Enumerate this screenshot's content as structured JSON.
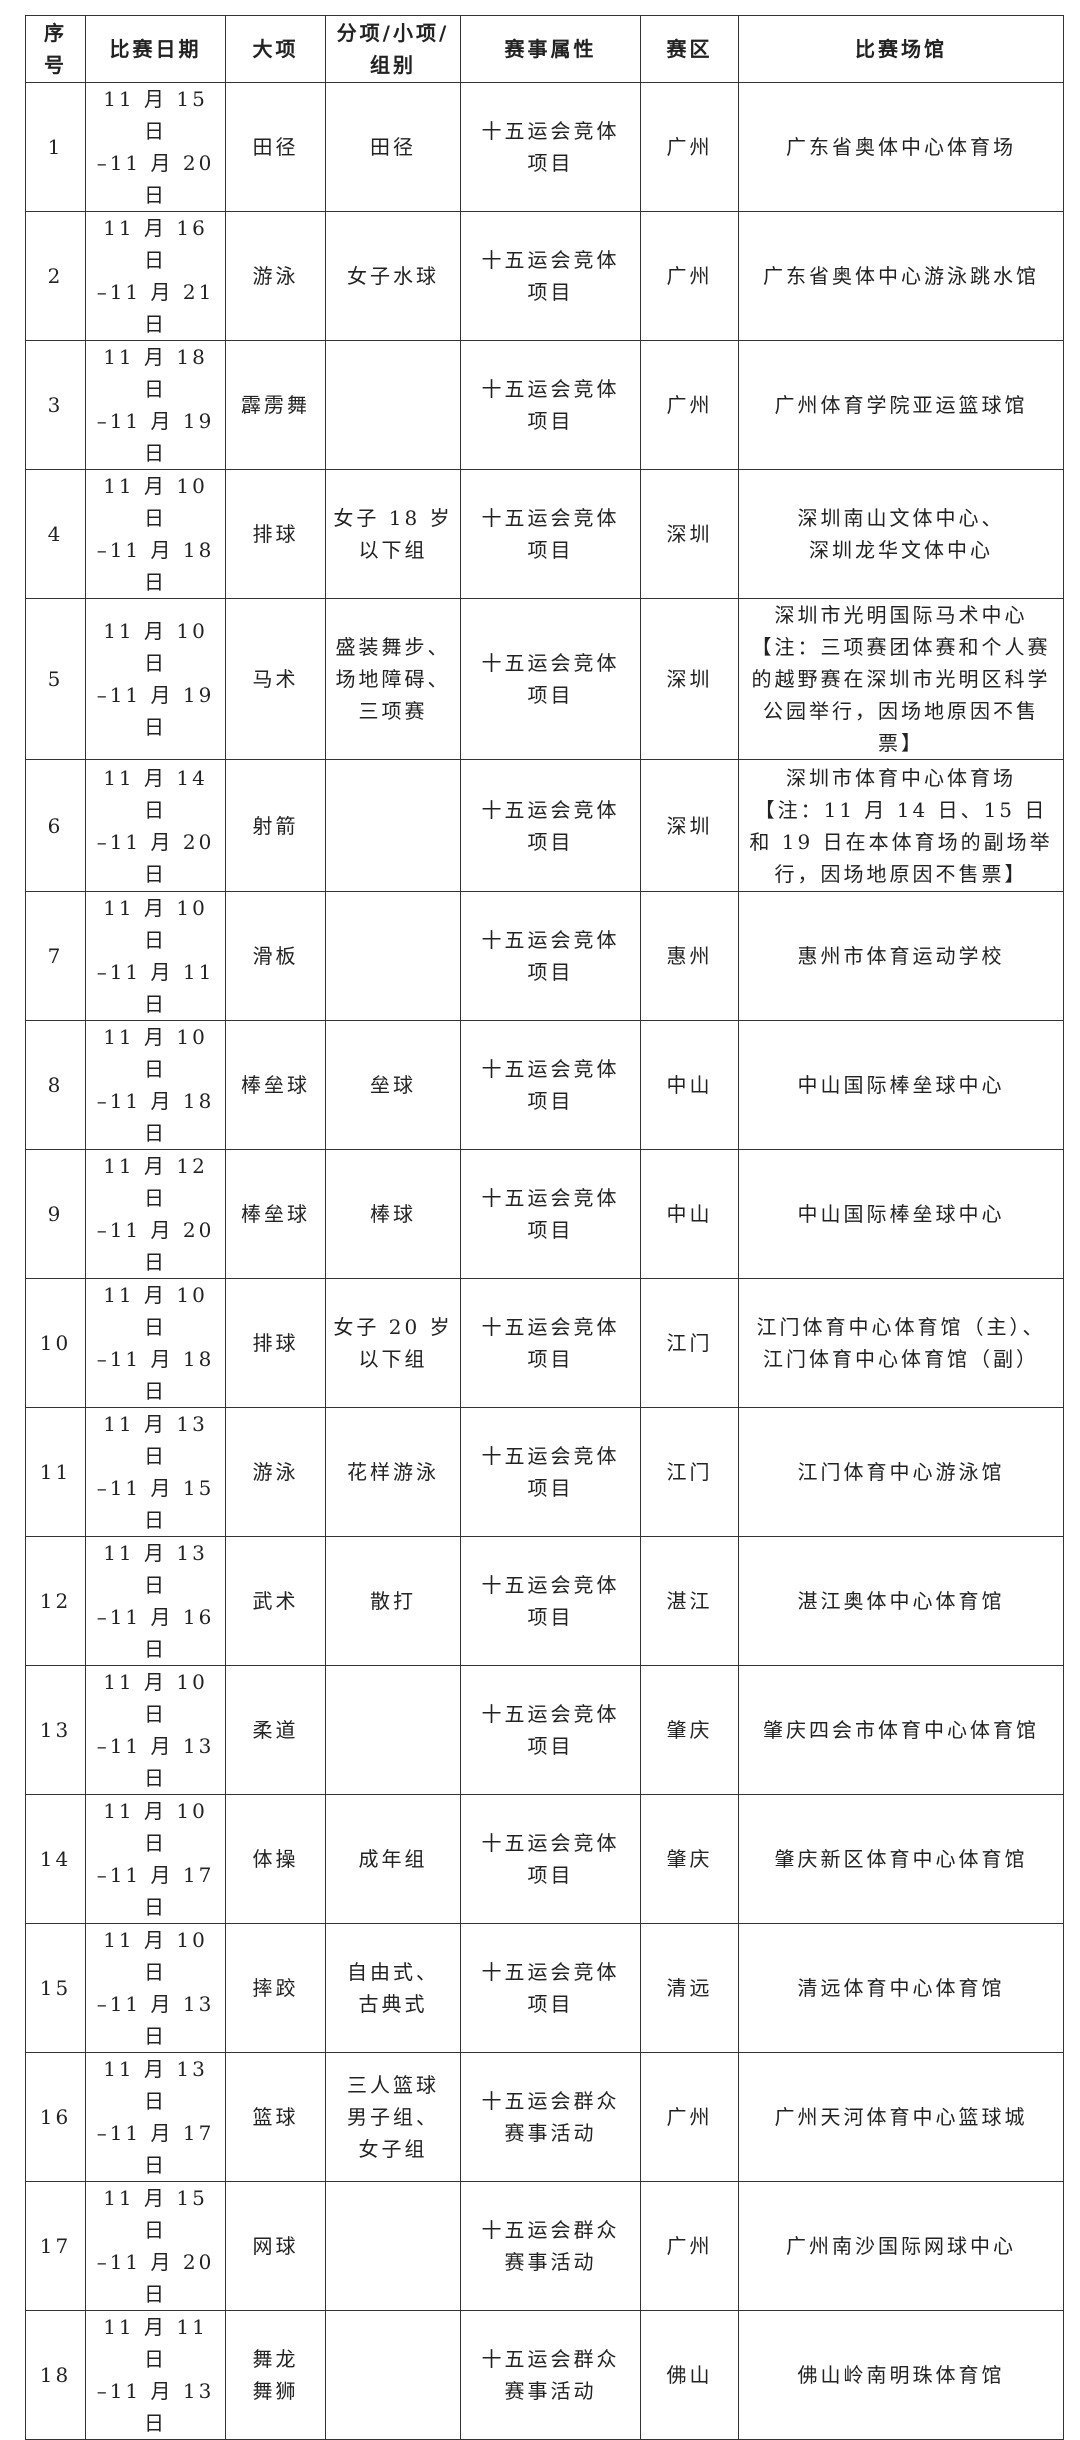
{
  "headers": [
    "序\n号",
    "比赛日期",
    "大项",
    "分项/小项/\n组别",
    "赛事属性",
    "赛区",
    "比赛场馆"
  ],
  "rows": [
    [
      "1",
      "11 月 15 日\n–11 月 20 日",
      "田径",
      "田径",
      "十五运会竞体\n项目",
      "广州",
      "广东省奥体中心体育场"
    ],
    [
      "2",
      "11 月 16 日\n–11 月 21 日",
      "游泳",
      "女子水球",
      "十五运会竞体\n项目",
      "广州",
      "广东省奥体中心游泳跳水馆"
    ],
    [
      "3",
      "11 月 18 日\n–11 月 19 日",
      "霹雳舞",
      "",
      "十五运会竞体\n项目",
      "广州",
      "广州体育学院亚运篮球馆"
    ],
    [
      "4",
      "11 月 10 日\n–11 月 18 日",
      "排球",
      "女子 18 岁\n以下组",
      "十五运会竞体\n项目",
      "深圳",
      "深圳南山文体中心、\n深圳龙华文体中心"
    ],
    [
      "5",
      "11 月 10 日\n–11 月 19 日",
      "马术",
      "盛装舞步、\n场地障碍、\n三项赛",
      "十五运会竞体\n项目",
      "深圳",
      "深圳市光明国际马术中心\n【注：三项赛团体赛和个人赛的越野赛在深圳市光明区科学公园举行，因场地原因不售票】"
    ],
    [
      "6",
      "11 月 14 日\n–11 月 20 日",
      "射箭",
      "",
      "十五运会竞体\n项目",
      "深圳",
      "深圳市体育中心体育场\n【注：11 月 14 日、15 日和 19 日在本体育场的副场举行，因场地原因不售票】"
    ],
    [
      "7",
      "11 月 10 日\n–11 月 11 日",
      "滑板",
      "",
      "十五运会竞体\n项目",
      "惠州",
      "惠州市体育运动学校"
    ],
    [
      "8",
      "11 月 10 日\n–11 月 18 日",
      "棒垒球",
      "垒球",
      "十五运会竞体\n项目",
      "中山",
      "中山国际棒垒球中心"
    ],
    [
      "9",
      "11 月 12 日\n–11 月 20 日",
      "棒垒球",
      "棒球",
      "十五运会竞体\n项目",
      "中山",
      "中山国际棒垒球中心"
    ],
    [
      "10",
      "11 月 10 日\n–11 月 18 日",
      "排球",
      "女子 20 岁\n以下组",
      "十五运会竞体\n项目",
      "江门",
      "江门体育中心体育馆（主）、\n江门体育中心体育馆（副）"
    ],
    [
      "11",
      "11 月 13 日\n–11 月 15 日",
      "游泳",
      "花样游泳",
      "十五运会竞体\n项目",
      "江门",
      "江门体育中心游泳馆"
    ],
    [
      "12",
      "11 月 13 日\n–11 月 16 日",
      "武术",
      "散打",
      "十五运会竞体\n项目",
      "湛江",
      "湛江奥体中心体育馆"
    ],
    [
      "13",
      "11 月 10 日\n–11 月 13 日",
      "柔道",
      "",
      "十五运会竞体\n项目",
      "肇庆",
      "肇庆四会市体育中心体育馆"
    ],
    [
      "14",
      "11 月 10 日\n–11 月 17 日",
      "体操",
      "成年组",
      "十五运会竞体\n项目",
      "肇庆",
      "肇庆新区体育中心体育馆"
    ],
    [
      "15",
      "11 月 10 日\n–11 月 13 日",
      "摔跤",
      "自由式、\n古典式",
      "十五运会竞体\n项目",
      "清远",
      "清远体育中心体育馆"
    ],
    [
      "16",
      "11 月 13 日\n–11 月 17 日",
      "篮球",
      "三人篮球\n男子组、\n女子组",
      "十五运会群众\n赛事活动",
      "广州",
      "广州天河体育中心篮球城"
    ],
    [
      "17",
      "11 月 15 日\n–11 月 20 日",
      "网球",
      "",
      "十五运会群众\n赛事活动",
      "广州",
      "广州南沙国际网球中心"
    ],
    [
      "18",
      "11 月 11 日\n–11 月 13 日",
      "舞龙\n舞狮",
      "",
      "十五运会群众\n赛事活动",
      "佛山",
      "佛山岭南明珠体育馆"
    ]
  ]
}
